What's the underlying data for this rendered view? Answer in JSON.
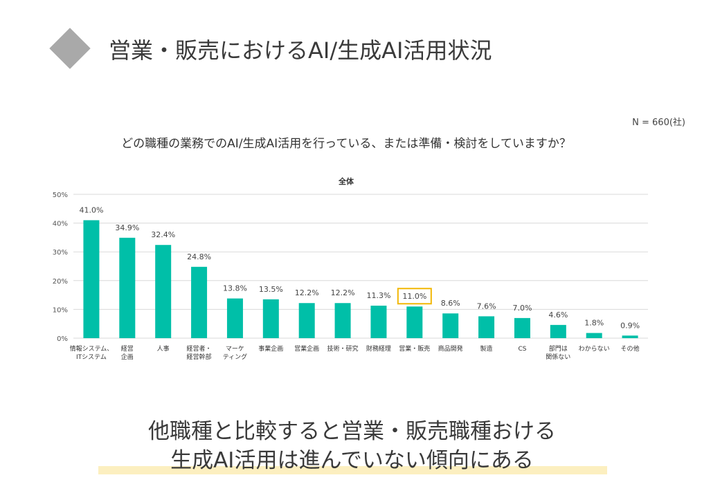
{
  "header": {
    "title": "営業・販売におけるAI/生成AI活用状況"
  },
  "sample_note": "N = 660(社)",
  "question": "どの職種の業務でのAI/生成AI活用を行っている、または準備・検討をしていますか？",
  "conclusion": {
    "line1": "他職種と比較すると営業・販売職種おける",
    "line2": "生成AI活用は進んでいない傾向にある"
  },
  "colors": {
    "bar": "#00bfa8",
    "highlight_box": "#f2b705",
    "grid": "#d9d9d9",
    "diamond": "#a9a9a9",
    "underline": "#fcefc0"
  },
  "chart_data": {
    "type": "bar",
    "title": "全体",
    "xlabel": "",
    "ylabel": "",
    "ylim": [
      0,
      50
    ],
    "yticks": [
      0,
      10,
      20,
      30,
      40,
      50
    ],
    "ytick_labels": [
      "0%",
      "10%",
      "20%",
      "30%",
      "40%",
      "50%"
    ],
    "grid": true,
    "categories": [
      [
        "情報システム、",
        "ITシステム"
      ],
      [
        "経営",
        "企画"
      ],
      [
        "人事"
      ],
      [
        "経営者・",
        "経営幹部"
      ],
      [
        "マーケ",
        "ティング"
      ],
      [
        "事業企画"
      ],
      [
        "営業企画"
      ],
      [
        "技術・研究"
      ],
      [
        "財務経理"
      ],
      [
        "営業・販売"
      ],
      [
        "商品開発"
      ],
      [
        "製造"
      ],
      [
        "CS"
      ],
      [
        "部門は",
        "関係ない"
      ],
      [
        "わからない"
      ],
      [
        "その他"
      ]
    ],
    "values": [
      41.0,
      34.9,
      32.4,
      24.8,
      13.8,
      13.5,
      12.2,
      12.2,
      11.3,
      11.0,
      8.6,
      7.6,
      7.0,
      4.6,
      1.8,
      0.9
    ],
    "value_labels": [
      "41.0%",
      "34.9%",
      "32.4%",
      "24.8%",
      "13.8%",
      "13.5%",
      "12.2%",
      "12.2%",
      "11.3%",
      "11.0%",
      "8.6%",
      "7.6%",
      "7.0%",
      "4.6%",
      "1.8%",
      "0.9%"
    ],
    "highlighted_category_index": 9
  }
}
